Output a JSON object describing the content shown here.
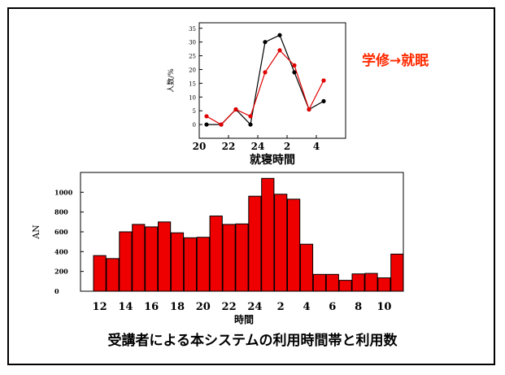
{
  "side_note": {
    "text": "学修→就眠",
    "color": "#ff2a00"
  },
  "caption": "受講者による本システムの利用時間帯と利用数",
  "colors": {
    "bar_fill": "#ee0000",
    "line_red": "#e00000",
    "line_black": "#000000"
  },
  "chart_data": [
    {
      "type": "line",
      "xlabel": "就寝時間",
      "ylabel": "人数/%",
      "x_tick_labels": [
        "20",
        "22",
        "24",
        "2",
        "4"
      ],
      "ylim": [
        -5,
        37
      ],
      "y_ticks": [
        0,
        5,
        10,
        15,
        20,
        25,
        30,
        35
      ],
      "x": [
        20.5,
        21.5,
        22.5,
        23.5,
        24.5,
        25.5,
        26.5,
        27.5,
        28.5
      ],
      "series": [
        {
          "color": "#000000",
          "values": [
            0,
            0,
            5.5,
            0,
            30,
            32.5,
            19,
            5.5,
            8.5
          ]
        },
        {
          "color": "#e00000",
          "values": [
            3,
            0,
            5.5,
            3,
            19,
            27,
            21.5,
            5.5,
            16
          ]
        }
      ],
      "grid": false
    },
    {
      "type": "bar",
      "xlabel": "時間",
      "ylabel": "AN",
      "x_tick_labels": [
        "12",
        "14",
        "16",
        "18",
        "20",
        "22",
        "24",
        "2",
        "4",
        "6",
        "8",
        "10"
      ],
      "ylim": [
        0,
        1200
      ],
      "y_ticks": [
        0,
        200,
        400,
        600,
        800,
        1000
      ],
      "values": [
        360,
        330,
        600,
        675,
        650,
        700,
        590,
        540,
        545,
        760,
        675,
        680,
        960,
        1140,
        980,
        930,
        475,
        170,
        170,
        110,
        175,
        180,
        135,
        375
      ],
      "grid": false
    }
  ]
}
